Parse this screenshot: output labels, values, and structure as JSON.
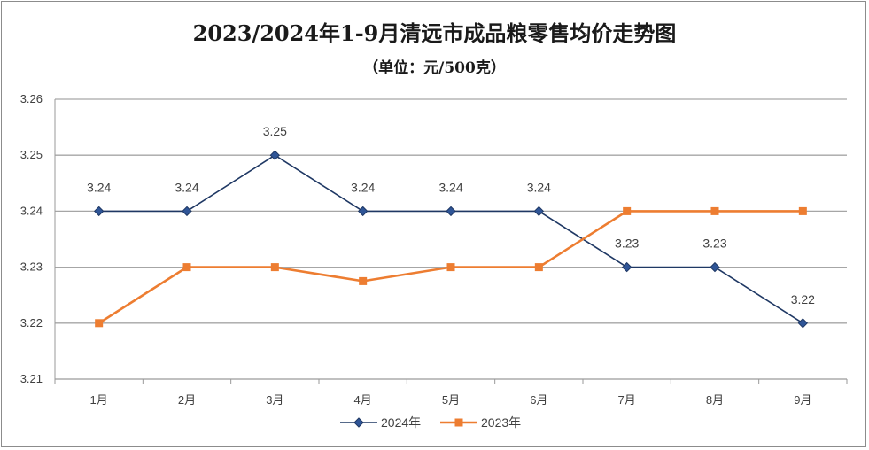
{
  "chart_data": {
    "type": "line",
    "title": "2023/2024年1-9月清远市成品粮零售均价走势图",
    "subtitle": "（单位：元/500克）",
    "categories": [
      "1月",
      "2月",
      "3月",
      "4月",
      "5月",
      "6月",
      "7月",
      "8月",
      "9月"
    ],
    "ylim": [
      3.21,
      3.26
    ],
    "yticks": [
      "3.26",
      "3.25",
      "3.24",
      "3.23",
      "3.22",
      "3.21"
    ],
    "grid": true,
    "legend_position": "bottom",
    "series": [
      {
        "name": "2024年",
        "color": "#1f3864",
        "marker": "diamond",
        "values": [
          3.24,
          3.24,
          3.25,
          3.24,
          3.24,
          3.24,
          3.23,
          3.23,
          3.22
        ],
        "labels": [
          "3.24",
          "3.24",
          "3.25",
          "3.24",
          "3.24",
          "3.24",
          "3.23",
          "3.23",
          "3.22"
        ]
      },
      {
        "name": "2023年",
        "color": "#ed7d31",
        "marker": "square",
        "values": [
          3.22,
          3.23,
          3.23,
          3.2275,
          3.23,
          3.23,
          3.24,
          3.24,
          3.24
        ]
      }
    ]
  }
}
